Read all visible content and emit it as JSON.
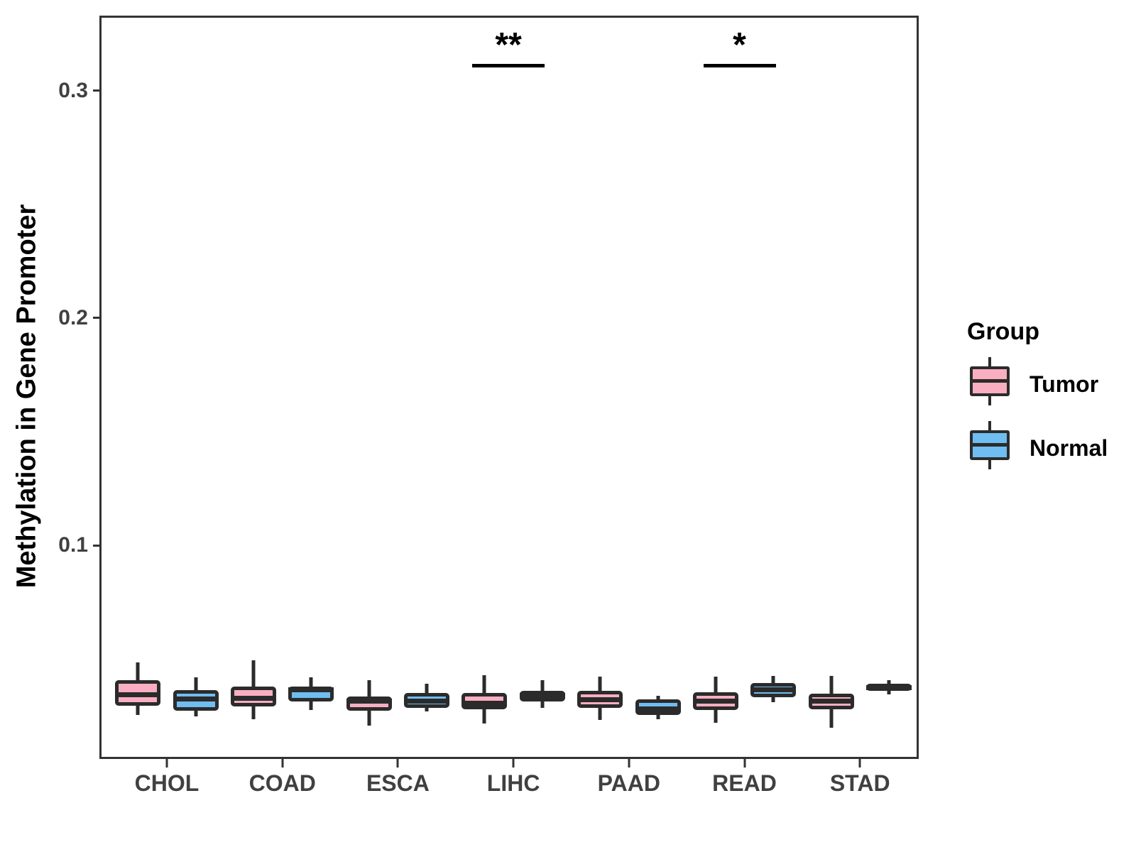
{
  "chart_data": {
    "type": "grouped_boxplot",
    "ylabel": "Methylation in Gene Promoter",
    "xlabel": "",
    "categories": [
      "CHOL",
      "COAD",
      "ESCA",
      "LIHC",
      "PAAD",
      "READ",
      "STAD"
    ],
    "yticks": [
      "0.1",
      "0.2",
      "0.3"
    ],
    "ytick_values": [
      0.1,
      0.2,
      0.3
    ],
    "ylim": [
      0.006,
      0.333
    ],
    "grid": "off",
    "legend_position": "right",
    "legend": {
      "title": "Group",
      "entries": [
        {
          "label": "Tumor",
          "color": "#FAAEC1"
        },
        {
          "label": "Normal",
          "color": "#6FBDF1"
        }
      ]
    },
    "series": [
      {
        "name": "Tumor",
        "color": "#FAAEC1",
        "boxes": [
          {
            "whisker_low": 0.0253,
            "q1": 0.0294,
            "median": 0.0344,
            "q3": 0.0406,
            "whisker_high": 0.0484
          },
          {
            "whisker_low": 0.0234,
            "q1": 0.0291,
            "median": 0.0328,
            "q3": 0.0378,
            "whisker_high": 0.0494
          },
          {
            "whisker_low": 0.0206,
            "q1": 0.0272,
            "median": 0.0313,
            "q3": 0.0334,
            "whisker_high": 0.0406
          },
          {
            "whisker_low": 0.0216,
            "q1": 0.0278,
            "median": 0.0306,
            "q3": 0.035,
            "whisker_high": 0.0428
          },
          {
            "whisker_low": 0.0231,
            "q1": 0.0284,
            "median": 0.0322,
            "q3": 0.0359,
            "whisker_high": 0.0422
          },
          {
            "whisker_low": 0.0219,
            "q1": 0.0275,
            "median": 0.0313,
            "q3": 0.0353,
            "whisker_high": 0.0422
          },
          {
            "whisker_low": 0.0197,
            "q1": 0.0278,
            "median": 0.0316,
            "q3": 0.0347,
            "whisker_high": 0.0425
          }
        ]
      },
      {
        "name": "Normal",
        "color": "#6FBDF1",
        "boxes": [
          {
            "whisker_low": 0.0247,
            "q1": 0.0272,
            "median": 0.0325,
            "q3": 0.0363,
            "whisker_high": 0.0419
          },
          {
            "whisker_low": 0.0275,
            "q1": 0.0313,
            "median": 0.0363,
            "q3": 0.0378,
            "whisker_high": 0.0419
          },
          {
            "whisker_low": 0.0269,
            "q1": 0.0284,
            "median": 0.0316,
            "q3": 0.035,
            "whisker_high": 0.0391
          },
          {
            "whisker_low": 0.0284,
            "q1": 0.0313,
            "median": 0.0338,
            "q3": 0.0359,
            "whisker_high": 0.0406
          },
          {
            "whisker_low": 0.0234,
            "q1": 0.0253,
            "median": 0.0281,
            "q3": 0.0322,
            "whisker_high": 0.0338
          },
          {
            "whisker_low": 0.0309,
            "q1": 0.0331,
            "median": 0.0366,
            "q3": 0.0394,
            "whisker_high": 0.0425
          },
          {
            "whisker_low": 0.0344,
            "q1": 0.0359,
            "median": 0.0375,
            "q3": 0.0391,
            "whisker_high": 0.0406
          }
        ]
      }
    ],
    "annotations": [
      {
        "category": "LIHC",
        "label": "**",
        "y": 0.311
      },
      {
        "category": "READ",
        "label": "*",
        "y": 0.311
      }
    ],
    "colors": {
      "box_outline": "#2b2b2b",
      "panel_border": "#333333",
      "tick_label": "#404040",
      "axis_title": "#000000"
    }
  }
}
